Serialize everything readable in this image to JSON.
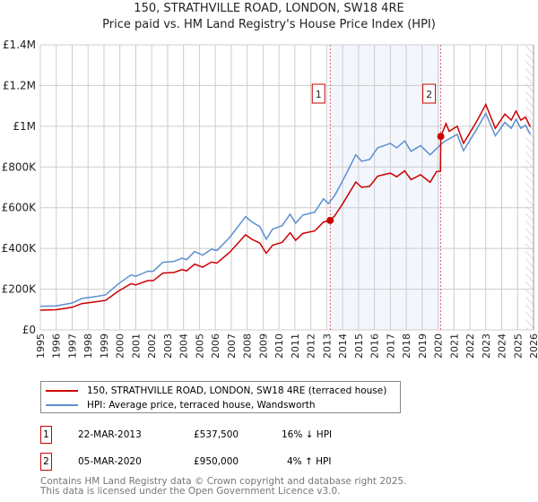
{
  "chart_data": {
    "type": "line",
    "title": "150, STRATHVILLE ROAD, LONDON, SW18 4RE",
    "subtitle": "Price paid vs. HM Land Registry's House Price Index (HPI)",
    "xlim": [
      1995,
      2026
    ],
    "ylim": [
      0,
      1400000
    ],
    "x_ticks": [
      "1995",
      "1996",
      "1997",
      "1998",
      "1999",
      "2000",
      "2001",
      "2002",
      "2003",
      "2004",
      "2005",
      "2006",
      "2007",
      "2008",
      "2009",
      "2010",
      "2011",
      "2012",
      "2013",
      "2014",
      "2015",
      "2016",
      "2017",
      "2018",
      "2019",
      "2020",
      "2021",
      "2022",
      "2023",
      "2024",
      "2025",
      "2026"
    ],
    "y_ticks": [
      {
        "v": 0,
        "label": "£0"
      },
      {
        "v": 200000,
        "label": "£200K"
      },
      {
        "v": 400000,
        "label": "£400K"
      },
      {
        "v": 600000,
        "label": "£600K"
      },
      {
        "v": 800000,
        "label": "£800K"
      },
      {
        "v": 1000000,
        "label": "£1M"
      },
      {
        "v": 1200000,
        "label": "£1.2M"
      },
      {
        "v": 1400000,
        "label": "£1.4M"
      }
    ],
    "grid": true,
    "shaded_period": [
      2013.22,
      2020.17
    ],
    "forecast_hatch_from": 2025.5,
    "series": [
      {
        "name": "150, STRATHVILLE ROAD, LONDON, SW18 4RE (terraced house)",
        "color": "#cc0000",
        "points": [
          [
            1995,
            97
          ],
          [
            1996,
            99
          ],
          [
            1997,
            111
          ],
          [
            1997.6,
            129
          ],
          [
            1998.5,
            138
          ],
          [
            1999.1,
            145
          ],
          [
            1999.9,
            190
          ],
          [
            2000.7,
            227
          ],
          [
            2001,
            221
          ],
          [
            2001.75,
            242
          ],
          [
            2002.1,
            242
          ],
          [
            2002.7,
            279
          ],
          [
            2003.4,
            282
          ],
          [
            2003.9,
            296
          ],
          [
            2004.2,
            290
          ],
          [
            2004.7,
            323
          ],
          [
            2005.2,
            308
          ],
          [
            2005.75,
            333
          ],
          [
            2006.1,
            328
          ],
          [
            2006.9,
            381
          ],
          [
            2007.9,
            467
          ],
          [
            2008.3,
            445
          ],
          [
            2008.8,
            426
          ],
          [
            2009.2,
            376
          ],
          [
            2009.6,
            416
          ],
          [
            2010.2,
            430
          ],
          [
            2010.7,
            477
          ],
          [
            2011.05,
            440
          ],
          [
            2011.5,
            474
          ],
          [
            2012.25,
            486
          ],
          [
            2012.8,
            530
          ],
          [
            2013.22,
            537.5
          ],
          [
            2013.5,
            560
          ],
          [
            2013.97,
            615
          ],
          [
            2014.83,
            726
          ],
          [
            2015.2,
            700
          ],
          [
            2015.7,
            705
          ],
          [
            2016.2,
            755
          ],
          [
            2017.0,
            770
          ],
          [
            2017.4,
            752
          ],
          [
            2017.9,
            781
          ],
          [
            2018.3,
            738
          ],
          [
            2018.9,
            762
          ],
          [
            2019.5,
            725
          ],
          [
            2019.9,
            777
          ],
          [
            2020.15,
            780
          ],
          [
            2020.17,
            950
          ],
          [
            2020.5,
            1013
          ],
          [
            2020.7,
            975
          ],
          [
            2021.2,
            1000
          ],
          [
            2021.6,
            916
          ],
          [
            2022.4,
            1020
          ],
          [
            2023.0,
            1107
          ],
          [
            2023.6,
            990
          ],
          [
            2024.2,
            1060
          ],
          [
            2024.6,
            1030
          ],
          [
            2024.9,
            1075
          ],
          [
            2025.2,
            1030
          ],
          [
            2025.5,
            1045
          ],
          [
            2025.8,
            997
          ]
        ]
      },
      {
        "name": "HPI: Average price, terraced house, Wandsworth",
        "color": "#5b8fd0",
        "points": [
          [
            1995,
            116
          ],
          [
            1996,
            118
          ],
          [
            1997,
            132
          ],
          [
            1997.6,
            154
          ],
          [
            1998.5,
            164
          ],
          [
            1999.1,
            172
          ],
          [
            1999.9,
            226
          ],
          [
            2000.7,
            270
          ],
          [
            2001,
            263
          ],
          [
            2001.75,
            288
          ],
          [
            2002.1,
            288
          ],
          [
            2002.7,
            332
          ],
          [
            2003.4,
            336
          ],
          [
            2003.9,
            352
          ],
          [
            2004.2,
            345
          ],
          [
            2004.7,
            385
          ],
          [
            2005.2,
            367
          ],
          [
            2005.75,
            396
          ],
          [
            2006.1,
            390
          ],
          [
            2006.9,
            454
          ],
          [
            2007.9,
            556
          ],
          [
            2008.3,
            530
          ],
          [
            2008.8,
            507
          ],
          [
            2009.2,
            446
          ],
          [
            2009.6,
            495
          ],
          [
            2010.2,
            512
          ],
          [
            2010.7,
            568
          ],
          [
            2011.05,
            524
          ],
          [
            2011.5,
            564
          ],
          [
            2012.25,
            578
          ],
          [
            2012.8,
            644
          ],
          [
            2013.1,
            620
          ],
          [
            2013.5,
            660
          ],
          [
            2013.97,
            727
          ],
          [
            2014.83,
            860
          ],
          [
            2015.2,
            828
          ],
          [
            2015.7,
            837
          ],
          [
            2016.2,
            894
          ],
          [
            2017.0,
            916
          ],
          [
            2017.4,
            894
          ],
          [
            2017.9,
            928
          ],
          [
            2018.3,
            877
          ],
          [
            2018.9,
            905
          ],
          [
            2019.5,
            860
          ],
          [
            2020.36,
            924
          ],
          [
            2020.7,
            938
          ],
          [
            2021.2,
            960
          ],
          [
            2021.6,
            880
          ],
          [
            2022.4,
            982
          ],
          [
            2023.0,
            1063
          ],
          [
            2023.6,
            953
          ],
          [
            2024.2,
            1019
          ],
          [
            2024.6,
            990
          ],
          [
            2024.9,
            1034
          ],
          [
            2025.2,
            990
          ],
          [
            2025.5,
            1005
          ],
          [
            2025.8,
            960
          ]
        ]
      }
    ],
    "value_unit": "thousands GBP",
    "sales": [
      {
        "num": "1",
        "year": 2013.22,
        "value": 537500,
        "date": "22-MAR-2013",
        "price": "£537,500",
        "hpi": "16% ↓ HPI"
      },
      {
        "num": "2",
        "year": 2020.17,
        "value": 950000,
        "date": "05-MAR-2020",
        "price": "£950,000",
        "hpi": "4% ↑ HPI"
      }
    ]
  },
  "footer": {
    "line1": "Contains HM Land Registry data © Crown copyright and database right 2025.",
    "line2": "This data is licensed under the Open Government Licence v3.0."
  }
}
